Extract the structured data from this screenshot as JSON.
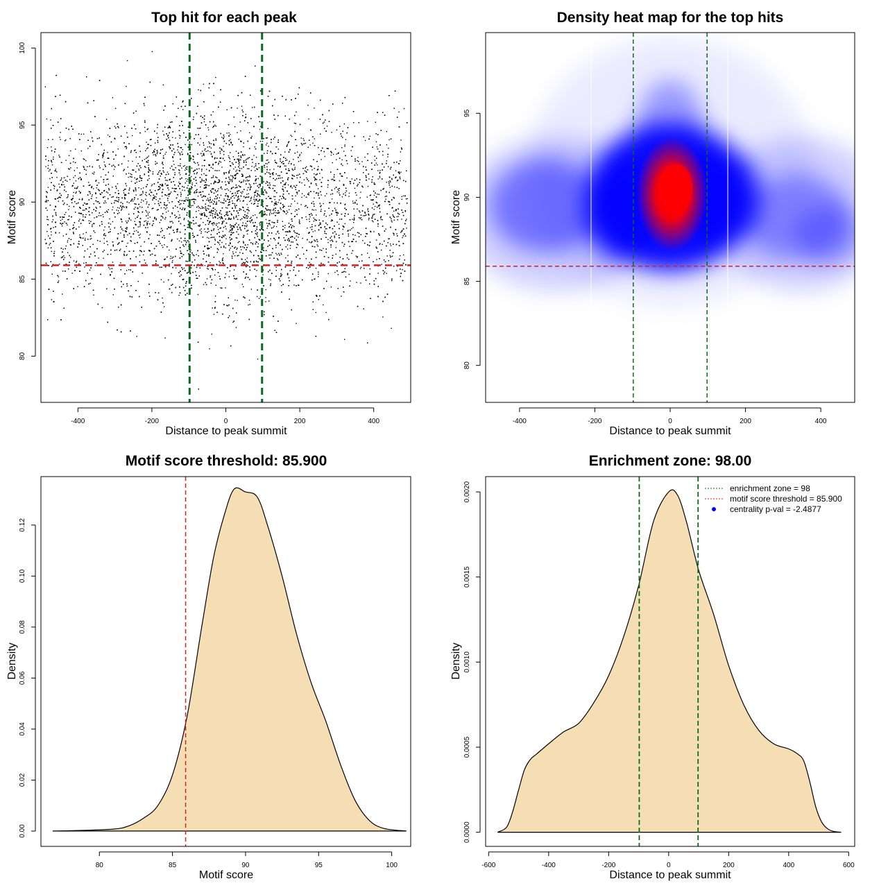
{
  "chart_data": [
    {
      "id": "scatter",
      "type": "scatter",
      "title": "Top hit for each peak",
      "xlabel": "Distance to peak summit",
      "ylabel": "Motif score",
      "xlim": [
        -500,
        500
      ],
      "ylim": [
        77,
        101
      ],
      "xticks": [
        "-400",
        "-200",
        "0",
        "200",
        "400"
      ],
      "yticks": [
        "80",
        "85",
        "90",
        "95",
        "100"
      ],
      "x_range_of_points": [
        -490,
        490
      ],
      "y_distribution": {
        "center": 89.5,
        "spread": 3.0,
        "min": 77.9,
        "max": 99.8
      },
      "approx_point_count": 9000,
      "point_color": "#000000",
      "vlines": [
        -98,
        98
      ],
      "vline_color": "#0a6b1a",
      "hline": 85.9,
      "hline_color": "#d42020"
    },
    {
      "id": "heatmap",
      "type": "heatmap",
      "title": "Density heat map for the top hits",
      "xlabel": "Distance to peak summit",
      "ylabel": "Motif score",
      "xlim": [
        -490,
        490
      ],
      "ylim": [
        77.8,
        99.8
      ],
      "xticks": [
        "-400",
        "-200",
        "0",
        "200",
        "400"
      ],
      "yticks": [
        "80",
        "85",
        "90",
        "95"
      ],
      "density_peak": {
        "x": 5,
        "y": 90.2
      },
      "colors": [
        "#ffffff",
        "#0000ff",
        "#ff0000"
      ],
      "vlines": [
        -98,
        98
      ],
      "vline_color": "#0a6b1a",
      "hline": 85.9,
      "hline_color": "#d42020"
    },
    {
      "id": "score-density",
      "type": "area",
      "title": "Motif score threshold: 85.900",
      "xlabel": "Motif score",
      "ylabel": "Density",
      "xlim": [
        76,
        101.3
      ],
      "ylim": [
        -0.006,
        0.139
      ],
      "xticks": [
        "80",
        "85",
        "90",
        "95",
        "100"
      ],
      "yticks": [
        "0.00",
        "0.02",
        "0.04",
        "0.06",
        "0.08",
        "0.10",
        "0.12"
      ],
      "x": [
        76.8,
        79,
        81,
        82,
        83,
        84,
        85,
        86,
        87,
        87.8,
        88.5,
        89.2,
        90,
        90.8,
        91.5,
        92.5,
        93.5,
        94.5,
        95.5,
        96.5,
        97.5,
        98.5,
        99.5,
        101
      ],
      "y": [
        0,
        0.0003,
        0.0008,
        0.002,
        0.005,
        0.01,
        0.022,
        0.045,
        0.08,
        0.107,
        0.123,
        0.134,
        0.133,
        0.131,
        0.12,
        0.1,
        0.077,
        0.058,
        0.043,
        0.026,
        0.012,
        0.004,
        0.001,
        0
      ],
      "fill": "#f5deb3",
      "vline": 85.9,
      "vline_color": "#d42020"
    },
    {
      "id": "distance-density",
      "type": "area",
      "title": "Enrichment zone: 98.00",
      "xlabel": "Distance to peak summit",
      "ylabel": "Density",
      "xlim": [
        -610,
        620
      ],
      "ylim": [
        -8.3e-05,
        0.00209
      ],
      "xticks": [
        "-600",
        "-400",
        "-200",
        "0",
        "200",
        "400",
        "600"
      ],
      "yticks": [
        "0.0000",
        "0.0005",
        "0.0010",
        "0.0015",
        "0.0020"
      ],
      "x": [
        -570,
        -540,
        -520,
        -500,
        -480,
        -460,
        -440,
        -400,
        -350,
        -300,
        -250,
        -200,
        -150,
        -100,
        -50,
        0,
        30,
        60,
        100,
        150,
        200,
        250,
        300,
        350,
        400,
        430,
        450,
        470,
        490,
        510,
        530,
        550,
        575
      ],
      "y": [
        0,
        3e-05,
        0.00012,
        0.00025,
        0.00037,
        0.00043,
        0.00046,
        0.00052,
        0.00059,
        0.00064,
        0.00076,
        0.00092,
        0.00115,
        0.00145,
        0.00183,
        0.002,
        0.00198,
        0.00182,
        0.00154,
        0.00128,
        0.00098,
        0.00075,
        0.0006,
        0.00052,
        0.00049,
        0.00046,
        0.00042,
        0.0003,
        0.00015,
        6e-05,
        2e-05,
        5e-06,
        0
      ],
      "fill": "#f5deb3",
      "vlines": [
        -98,
        98
      ],
      "vline_color": "#0a6b1a",
      "legend": {
        "position": "top-right",
        "entries": [
          {
            "label": "enrichment zone = 98",
            "style": "dotted",
            "color": "#0a6b1a"
          },
          {
            "label": "motif score threshold = 85.900",
            "style": "dotted",
            "color": "#d42020"
          },
          {
            "label": "centrality p-val = -2.4877",
            "style": "point",
            "color": "#0000ff"
          }
        ]
      }
    }
  ]
}
